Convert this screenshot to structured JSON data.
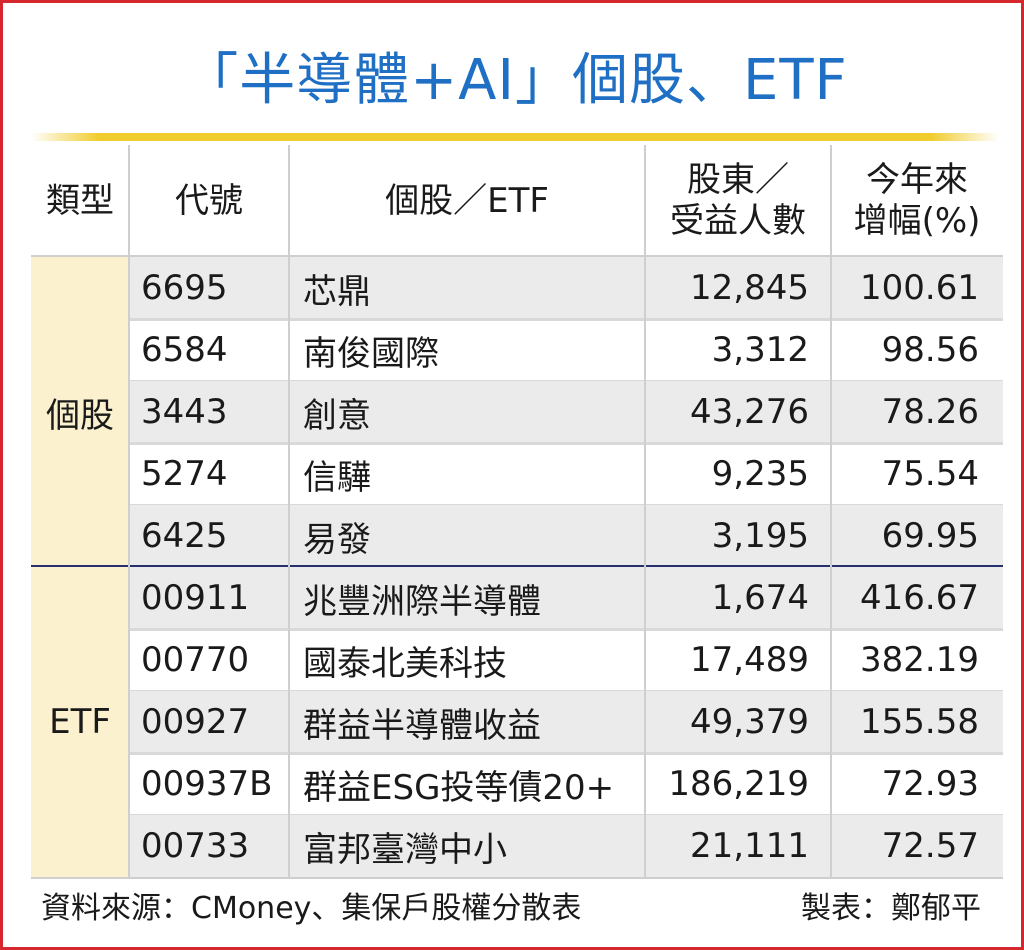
{
  "title": "「半導體+AI」個股、ETF",
  "header": {
    "type": "類型",
    "code": "代號",
    "name": "個股／ETF",
    "holders_line1": "股東／",
    "holders_line2": "受益人數",
    "change_line1": "今年來",
    "change_line2": "增幅(%)"
  },
  "chart_data": {
    "type": "table",
    "columns": [
      "類型",
      "代號",
      "個股／ETF",
      "股東／受益人數",
      "今年來增幅(%)"
    ],
    "groups": [
      {
        "type": "個股",
        "rows": [
          {
            "code": "6695",
            "name": "芯鼎",
            "holders": "12,845",
            "change": "100.61"
          },
          {
            "code": "6584",
            "name": "南俊國際",
            "holders": "3,312",
            "change": "98.56"
          },
          {
            "code": "3443",
            "name": "創意",
            "holders": "43,276",
            "change": "78.26"
          },
          {
            "code": "5274",
            "name": "信驊",
            "holders": "9,235",
            "change": "75.54"
          },
          {
            "code": "6425",
            "name": "易發",
            "holders": "3,195",
            "change": "69.95"
          }
        ]
      },
      {
        "type": "ETF",
        "rows": [
          {
            "code": "00911",
            "name": "兆豐洲際半導體",
            "holders": "1,674",
            "change": "416.67"
          },
          {
            "code": "00770",
            "name": "國泰北美科技",
            "holders": "17,489",
            "change": "382.19"
          },
          {
            "code": "00927",
            "name": "群益半導體收益",
            "holders": "49,379",
            "change": "155.58"
          },
          {
            "code": "00937B",
            "name": "群益ESG投等債20+",
            "holders": "186,219",
            "change": "72.93"
          },
          {
            "code": "00733",
            "name": "富邦臺灣中小",
            "holders": "21,111",
            "change": "72.57"
          }
        ]
      }
    ]
  },
  "footer": {
    "source": "資料來源：CMoney、集保戶股權分散表",
    "maker": "製表：鄭郁平"
  },
  "colors": {
    "border": "#d6262e",
    "title": "#1f6fc4",
    "title_rule": "#f1cc2e",
    "type_band": "#fbf1cf",
    "row_shade": "#ebebeb",
    "group_divider": "#29306e"
  }
}
